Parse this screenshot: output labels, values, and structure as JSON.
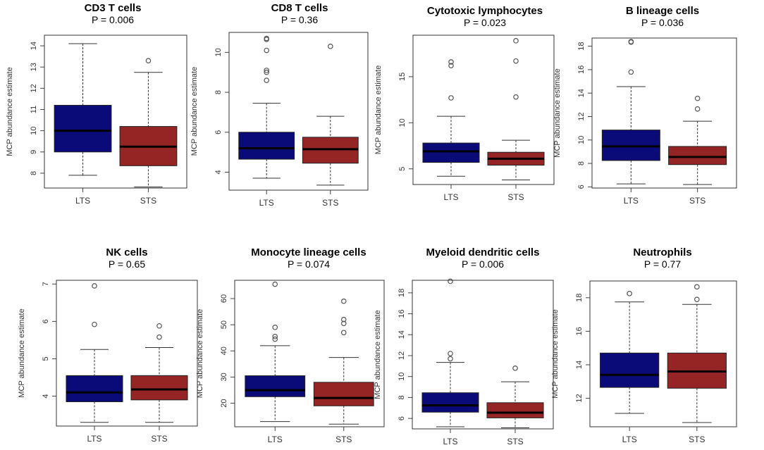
{
  "chart_data": [
    {
      "type": "box",
      "title": "CD3 T cells",
      "pvalue": "P = 0.006",
      "ylabel": "MCP abundance estimate",
      "ylim": [
        7.3,
        14.5
      ],
      "yticks": [
        8,
        9,
        10,
        11,
        12,
        13,
        14
      ],
      "categories": [
        "LTS",
        "STS"
      ],
      "boxes": [
        {
          "group": "LTS",
          "min": 7.9,
          "q1": 9.0,
          "median": 10.0,
          "q3": 11.2,
          "max": 14.1,
          "outliers": [],
          "color": "#0a0a78"
        },
        {
          "group": "STS",
          "min": 7.35,
          "q1": 8.35,
          "median": 9.25,
          "q3": 10.2,
          "max": 12.75,
          "outliers": [
            13.3
          ],
          "color": "#952424"
        }
      ]
    },
    {
      "type": "box",
      "title": "CD8 T cells",
      "pvalue": "P = 0.36",
      "ylabel": "MCP abundance estimate",
      "ylim": [
        3.1,
        11.0
      ],
      "yticks": [
        4,
        6,
        8,
        10
      ],
      "categories": [
        "LTS",
        "STS"
      ],
      "boxes": [
        {
          "group": "LTS",
          "min": 3.7,
          "q1": 4.65,
          "median": 5.2,
          "q3": 6.0,
          "max": 7.45,
          "outliers": [
            8.6,
            9.0,
            9.1,
            10.1,
            10.65,
            10.7
          ],
          "color": "#0a0a78"
        },
        {
          "group": "STS",
          "min": 3.35,
          "q1": 4.45,
          "median": 5.15,
          "q3": 5.75,
          "max": 6.8,
          "outliers": [
            10.3
          ],
          "color": "#952424"
        }
      ]
    },
    {
      "type": "box",
      "title": "Cytotoxic lymphocytes",
      "pvalue": "P = 0.023",
      "ylabel": "MCP abundance estimate",
      "ylim": [
        3.3,
        19.5
      ],
      "yticks": [
        5,
        10,
        15
      ],
      "categories": [
        "LTS",
        "STS"
      ],
      "boxes": [
        {
          "group": "LTS",
          "min": 4.2,
          "q1": 5.7,
          "median": 6.9,
          "q3": 7.8,
          "max": 10.7,
          "outliers": [
            12.7,
            16.2,
            16.6
          ],
          "color": "#0a0a78"
        },
        {
          "group": "STS",
          "min": 3.8,
          "q1": 5.4,
          "median": 6.1,
          "q3": 6.8,
          "max": 8.1,
          "outliers": [
            12.8,
            16.7,
            18.9
          ],
          "color": "#952424"
        }
      ]
    },
    {
      "type": "box",
      "title": "B lineage cells",
      "pvalue": "P = 0.036",
      "ylabel": "MCP abundance estimate",
      "ylim": [
        5.9,
        18.7
      ],
      "yticks": [
        6,
        8,
        10,
        12,
        14,
        16,
        18
      ],
      "categories": [
        "LTS",
        "STS"
      ],
      "boxes": [
        {
          "group": "LTS",
          "min": 6.25,
          "q1": 8.25,
          "median": 9.45,
          "q3": 10.85,
          "max": 14.55,
          "outliers": [
            15.8,
            18.35,
            18.4
          ],
          "color": "#0a0a78"
        },
        {
          "group": "STS",
          "min": 6.2,
          "q1": 7.9,
          "median": 8.55,
          "q3": 9.45,
          "max": 11.6,
          "outliers": [
            12.65,
            13.55
          ],
          "color": "#952424"
        }
      ]
    },
    {
      "type": "box",
      "title": "NK cells",
      "pvalue": "P = 0.65",
      "ylabel": "MCP abundance estimate",
      "ylim": [
        3.2,
        7.1
      ],
      "yticks": [
        4,
        5,
        6,
        7
      ],
      "categories": [
        "LTS",
        "STS"
      ],
      "boxes": [
        {
          "group": "LTS",
          "min": 3.3,
          "q1": 3.85,
          "median": 4.1,
          "q3": 4.55,
          "max": 5.25,
          "outliers": [
            5.92,
            6.95
          ],
          "color": "#0a0a78"
        },
        {
          "group": "STS",
          "min": 3.3,
          "q1": 3.9,
          "median": 4.18,
          "q3": 4.55,
          "max": 5.3,
          "outliers": [
            5.58,
            5.88
          ],
          "color": "#952424"
        }
      ]
    },
    {
      "type": "box",
      "title": "Monocyte lineage cells",
      "pvalue": "P = 0.074",
      "ylabel": "MCP abundance estimate",
      "ylim": [
        11,
        67
      ],
      "yticks": [
        20,
        30,
        40,
        50,
        60
      ],
      "categories": [
        "LTS",
        "STS"
      ],
      "boxes": [
        {
          "group": "LTS",
          "min": 13.0,
          "q1": 22.5,
          "median": 25.0,
          "q3": 30.5,
          "max": 42.0,
          "outliers": [
            44.5,
            45.5,
            49.0,
            65.5
          ],
          "color": "#0a0a78"
        },
        {
          "group": "STS",
          "min": 12.0,
          "q1": 19.0,
          "median": 22.0,
          "q3": 28.0,
          "max": 37.5,
          "outliers": [
            47.0,
            50.5,
            52.0,
            59.0
          ],
          "color": "#952424"
        }
      ]
    },
    {
      "type": "box",
      "title": "Myeloid dendritic cells",
      "pvalue": "P = 0.006",
      "ylabel": "MCP abundance estimate",
      "ylim": [
        5.0,
        19.2
      ],
      "yticks": [
        6,
        8,
        10,
        12,
        14,
        16,
        18
      ],
      "categories": [
        "LTS",
        "STS"
      ],
      "boxes": [
        {
          "group": "LTS",
          "min": 5.2,
          "q1": 6.6,
          "median": 7.25,
          "q3": 8.45,
          "max": 11.35,
          "outliers": [
            11.7,
            12.2,
            19.1
          ],
          "color": "#0a0a78"
        },
        {
          "group": "STS",
          "min": 5.1,
          "q1": 6.05,
          "median": 6.55,
          "q3": 7.5,
          "max": 9.5,
          "outliers": [
            10.8
          ],
          "color": "#952424"
        }
      ]
    },
    {
      "type": "box",
      "title": "Neutrophils",
      "pvalue": "P = 0.77",
      "ylabel": "MCP abundance estimate",
      "ylim": [
        10.3,
        19.0
      ],
      "yticks": [
        12,
        14,
        16,
        18
      ],
      "categories": [
        "LTS",
        "STS"
      ],
      "boxes": [
        {
          "group": "LTS",
          "min": 11.1,
          "q1": 12.65,
          "median": 13.4,
          "q3": 14.7,
          "max": 17.75,
          "outliers": [
            18.25
          ],
          "color": "#0a0a78"
        },
        {
          "group": "STS",
          "min": 10.55,
          "q1": 12.6,
          "median": 13.6,
          "q3": 14.7,
          "max": 17.6,
          "outliers": [
            17.9,
            18.65
          ],
          "color": "#952424"
        }
      ]
    }
  ]
}
